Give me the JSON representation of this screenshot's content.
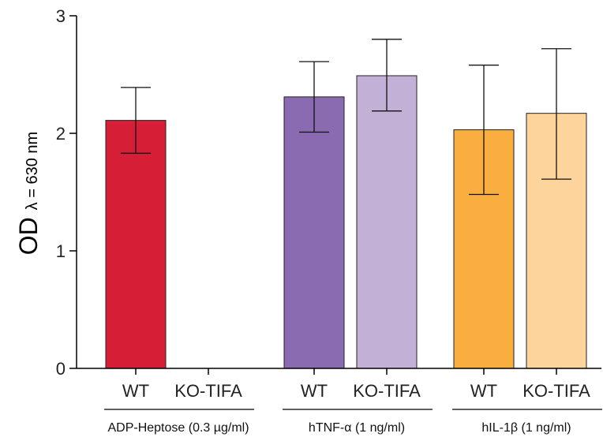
{
  "chart_data": {
    "type": "bar",
    "ylabel_main": "OD",
    "ylabel_sub": "λ = 630 nm",
    "ylim": [
      0,
      3
    ],
    "yticks": [
      "0",
      "1",
      "2",
      "3"
    ],
    "grid": false,
    "groups": [
      {
        "label": "ADP-Heptose (0.3 µg/ml)",
        "bars": [
          {
            "label": "WT",
            "value": 2.11,
            "err_low": 1.83,
            "err_high": 2.39,
            "color": "#D61F36"
          },
          {
            "label": "KO-TIFA",
            "value": 0,
            "err_low": null,
            "err_high": null,
            "color": "#D61F36"
          }
        ]
      },
      {
        "label": "hTNF-α (1 ng/ml)",
        "bars": [
          {
            "label": "WT",
            "value": 2.31,
            "err_low": 2.01,
            "err_high": 2.61,
            "color": "#8A6BB1"
          },
          {
            "label": "KO-TIFA",
            "value": 2.49,
            "err_low": 2.19,
            "err_high": 2.8,
            "color": "#C2B0D7"
          }
        ]
      },
      {
        "label": "hIL-1β (1 ng/ml)",
        "bars": [
          {
            "label": "WT",
            "value": 2.03,
            "err_low": 1.48,
            "err_high": 2.58,
            "color": "#FBAE40"
          },
          {
            "label": "KO-TIFA",
            "value": 2.17,
            "err_low": 1.61,
            "err_high": 2.72,
            "color": "#FDD49C"
          }
        ]
      }
    ]
  }
}
